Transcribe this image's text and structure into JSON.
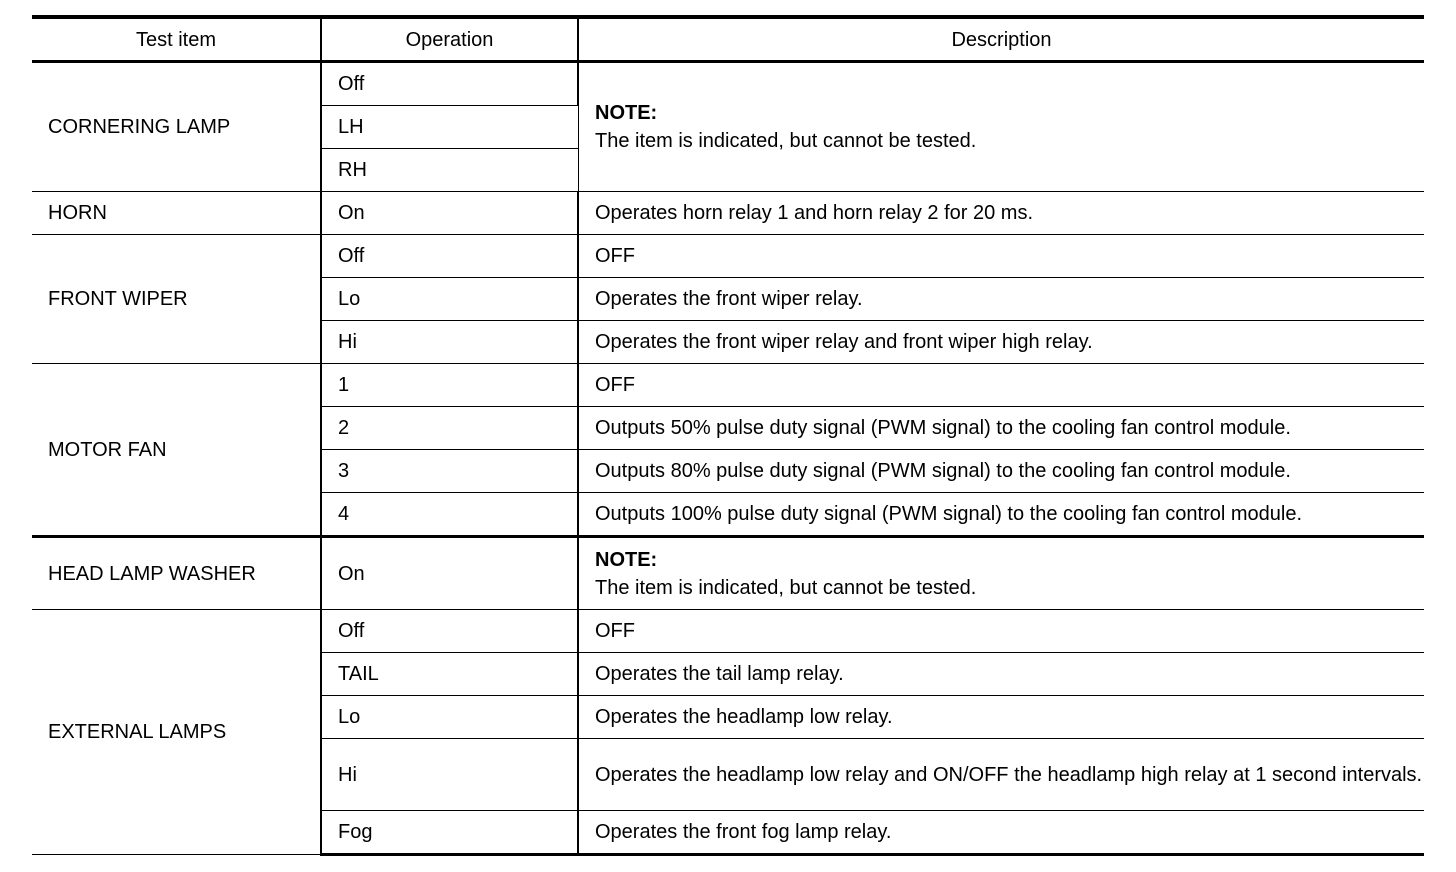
{
  "table": {
    "headers": [
      "Test item",
      "Operation",
      "Description"
    ],
    "groups": [
      {
        "item": "CORNERING LAMP",
        "rows": [
          {
            "operation": "Off"
          },
          {
            "operation": "LH"
          },
          {
            "operation": "RH"
          }
        ],
        "shared_description": {
          "note": "NOTE:",
          "text": "The item is indicated, but cannot be tested."
        }
      },
      {
        "item": "HORN",
        "rows": [
          {
            "operation": "On",
            "description": "Operates horn relay 1 and horn relay 2 for 20 ms."
          }
        ]
      },
      {
        "item": "FRONT WIPER",
        "rows": [
          {
            "operation": "Off",
            "description": "OFF"
          },
          {
            "operation": "Lo",
            "description": "Operates the front wiper relay."
          },
          {
            "operation": "Hi",
            "description": "Operates the front wiper relay and front wiper high relay."
          }
        ]
      },
      {
        "item": "MOTOR FAN",
        "thick_bottom": true,
        "rows": [
          {
            "operation": "1",
            "description": "OFF"
          },
          {
            "operation": "2",
            "description": "Outputs 50% pulse duty signal (PWM signal) to the cooling fan control module."
          },
          {
            "operation": "3",
            "description": "Outputs 80% pulse duty signal (PWM signal) to the cooling fan control module."
          },
          {
            "operation": "4",
            "description": "Outputs 100% pulse duty signal (PWM signal) to the cooling fan control module."
          }
        ]
      },
      {
        "item": "HEAD LAMP WASHER",
        "rows": [
          {
            "operation": "On",
            "description": {
              "note": "NOTE:",
              "text": "The item is indicated, but cannot be tested."
            }
          }
        ]
      },
      {
        "item": "EXTERNAL LAMPS",
        "rows": [
          {
            "operation": "Off",
            "description": "OFF"
          },
          {
            "operation": "TAIL",
            "description": "Operates the tail lamp relay."
          },
          {
            "operation": "Lo",
            "description": "Operates the headlamp low relay."
          },
          {
            "operation": "Hi",
            "description": "Operates the headlamp low relay and ON/OFF the headlamp high relay at 1 sec­ond intervals."
          },
          {
            "operation": "Fog",
            "description": "Operates the front fog lamp relay."
          }
        ]
      }
    ]
  }
}
